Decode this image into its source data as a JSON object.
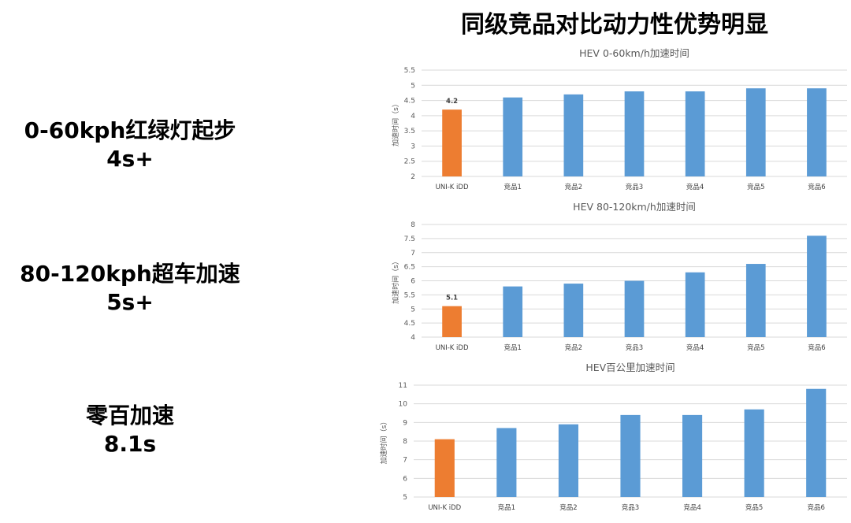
{
  "page": {
    "title": "同级竞品对比动力性优势明显",
    "metrics": [
      {
        "label": "0-60kph红绿灯起步",
        "value": "4s+"
      },
      {
        "label": "80-120kph超车加速",
        "value": "5s+"
      },
      {
        "label": "零百加速",
        "value": "8.1s"
      }
    ]
  },
  "colors": {
    "highlight": "#ed7d31",
    "competitor": "#5b9bd5"
  },
  "chart_data": [
    {
      "type": "bar",
      "title": "HEV 0-60km/h加速时间",
      "ylabel": "加速时间（s）",
      "categories": [
        "UNI-K iDD",
        "竞品1",
        "竞品2",
        "竞品3",
        "竞品4",
        "竞品5",
        "竞品6"
      ],
      "values": [
        4.2,
        4.6,
        4.7,
        4.8,
        4.8,
        4.9,
        4.9
      ],
      "ylim": [
        2,
        5.5
      ],
      "yticks": [
        "2",
        "2.5",
        "3",
        "3.5",
        "4",
        "4.5",
        "5",
        "5.5"
      ],
      "data_labels": [
        "4.2",
        "",
        "",
        "",
        "",
        "",
        ""
      ],
      "grid": true,
      "highlight_index": 0
    },
    {
      "type": "bar",
      "title": "HEV 80-120km/h加速时间",
      "ylabel": "加速时间（s）",
      "categories": [
        "UNI-K iDD",
        "竞品1",
        "竞品2",
        "竞品3",
        "竞品4",
        "竞品5",
        "竞品6"
      ],
      "values": [
        5.1,
        5.8,
        5.9,
        6.0,
        6.3,
        6.6,
        7.6
      ],
      "ylim": [
        4,
        8
      ],
      "yticks": [
        "4",
        "4.5",
        "5",
        "5.5",
        "6",
        "6.5",
        "7",
        "7.5",
        "8"
      ],
      "data_labels": [
        "5.1",
        "",
        "",
        "",
        "",
        "",
        ""
      ],
      "grid": true,
      "highlight_index": 0
    },
    {
      "type": "bar",
      "title": "HEV百公里加速时间",
      "ylabel": "加速时间（s）",
      "categories": [
        "UNI-K iDD",
        "竞品1",
        "竞品2",
        "竞品3",
        "竞品4",
        "竞品5",
        "竞品6"
      ],
      "values": [
        8.1,
        8.7,
        8.9,
        9.4,
        9.4,
        9.7,
        10.8
      ],
      "ylim": [
        5,
        11
      ],
      "yticks": [
        "5",
        "6",
        "7",
        "8",
        "9",
        "10",
        "11"
      ],
      "data_labels": [
        "",
        "",
        "",
        "",
        "",
        "",
        ""
      ],
      "grid": true,
      "highlight_index": 0
    }
  ]
}
